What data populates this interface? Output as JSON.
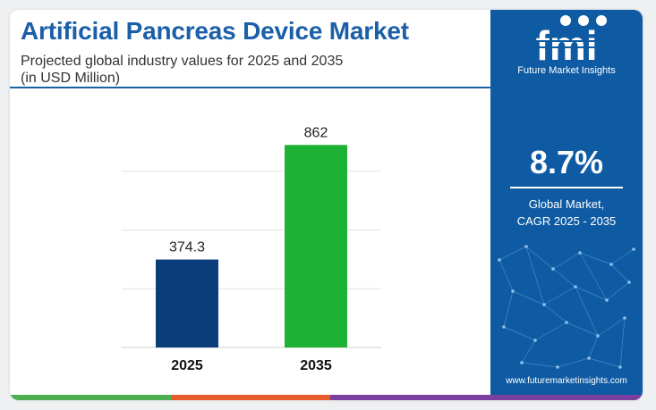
{
  "header": {
    "title": "Artificial Pancreas Device Market",
    "subtitle_line1": "Projected global industry values for 2025 and 2035",
    "subtitle_line2": "(in USD Million)"
  },
  "chart_data": {
    "type": "bar",
    "categories": [
      "2025",
      "2035"
    ],
    "values": [
      374.3,
      862
    ],
    "value_labels": [
      "374.3",
      "862"
    ],
    "colors": [
      "#0a3d7a",
      "#1db233"
    ],
    "ylim": [
      0,
      1000
    ],
    "grid": true
  },
  "sidebar": {
    "logo_letters": "fmi",
    "logo_name": "Future Market Insights",
    "cagr_value": "8.7%",
    "cagr_label_line1": "Global Market,",
    "cagr_label_line2": "CAGR 2025 - 2035",
    "website": "www.futuremarketinsights.com",
    "background_color": "#0f5ba3"
  },
  "bottom_bar_colors": [
    "#4caf50",
    "#e65c2b",
    "#7b3fa0"
  ]
}
